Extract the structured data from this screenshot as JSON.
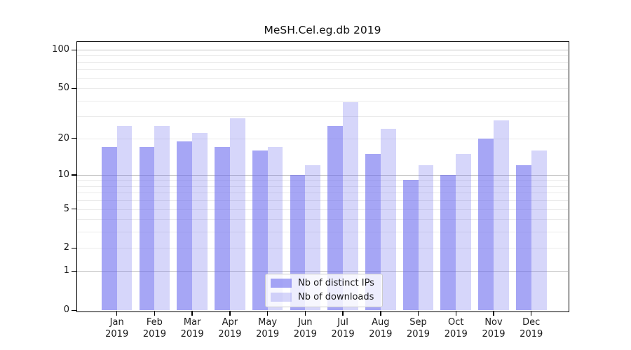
{
  "chart_data": {
    "type": "bar",
    "title": "MeSH.Cel.eg.db 2019",
    "categories": [
      "Jan 2019",
      "Feb 2019",
      "Mar 2019",
      "Apr 2019",
      "May 2019",
      "Jun 2019",
      "Jul 2019",
      "Aug 2019",
      "Sep 2019",
      "Oct 2019",
      "Nov 2019",
      "Dec 2019"
    ],
    "series": [
      {
        "name": "Nb of distinct IPs",
        "values": [
          17,
          17,
          19,
          17,
          16,
          10,
          25,
          15,
          9,
          10,
          20,
          12
        ],
        "color": "rgba(102,102,238,0.58)"
      },
      {
        "name": "Nb of downloads",
        "values": [
          25,
          25,
          22,
          29,
          17,
          12,
          39,
          24,
          12,
          15,
          28,
          16
        ],
        "color": "rgba(102,102,238,0.27)"
      }
    ],
    "ytick_labels": [
      100,
      50,
      20,
      10,
      5,
      2,
      1,
      0
    ],
    "major_gridlines": [
      1,
      10,
      100
    ],
    "minor_gridlines": [
      2,
      3,
      4,
      5,
      6,
      7,
      8,
      9,
      20,
      30,
      40,
      50,
      60,
      70,
      80,
      90
    ],
    "scale": "log10(1+value)",
    "ylim": [
      0,
      100
    ],
    "grid": true,
    "legend_position": "lower center",
    "colors": {
      "bar_base": "#6666ee",
      "major_grid": "#c4c4c4",
      "minor_grid": "#ebebeb",
      "spine": "#000000"
    }
  }
}
